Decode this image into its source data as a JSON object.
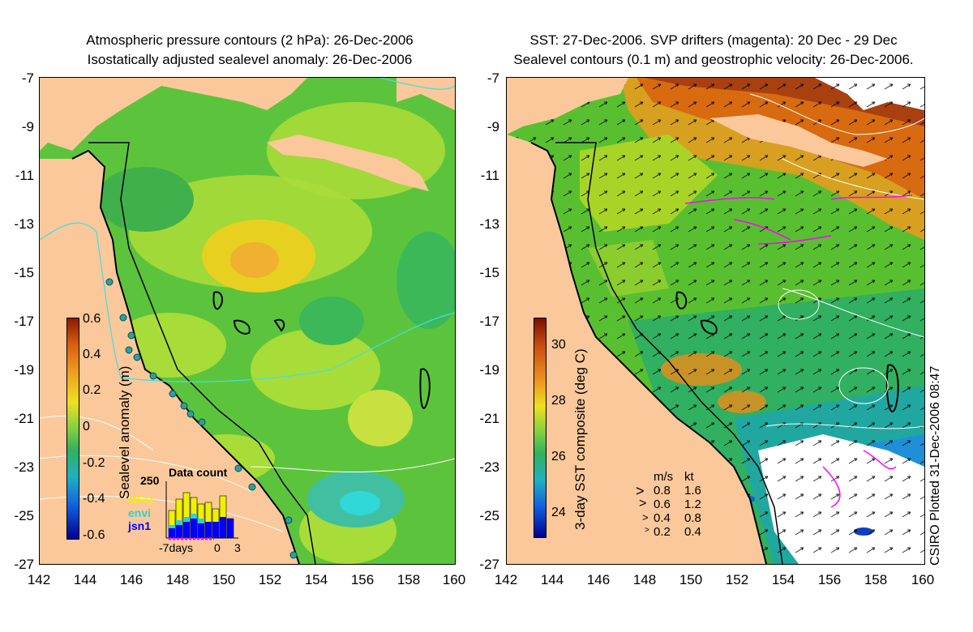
{
  "left_panel": {
    "title_line1": "Atmospheric pressure contours (2 hPa): 26-Dec-2006",
    "title_line2": "Isostatically adjusted sealevel anomaly: 26-Dec-2006",
    "colorbar_label": "Sealevel anomaly (m)",
    "colorbar_ticks": [
      "0.6",
      "0.4",
      "0.2",
      "0",
      "-0.2",
      "-0.4",
      "-0.6"
    ],
    "inset": {
      "title": "Data count",
      "y_tick": "250",
      "sources": [
        {
          "name": "GFO",
          "color": "#f0f000"
        },
        {
          "name": "envi",
          "color": "#30d0d0"
        },
        {
          "name": "jsn1",
          "color": "#0000ff"
        }
      ],
      "x_left": "-7days",
      "x_mid": "0",
      "x_right": "3"
    }
  },
  "right_panel": {
    "title_line1": "SST: 27-Dec-2006. SVP drifters (magenta): 20 Dec - 29 Dec",
    "title_line2": "Sealevel contours (0.1 m) and geostrophic velocity: 26-Dec-2006.",
    "colorbar_label": "3-day SST composite (deg C)",
    "colorbar_ticks": [
      "30",
      "28",
      "26",
      "24"
    ],
    "velocity_legend": {
      "header_ms": "m/s",
      "header_kt": "kt",
      "rows": [
        {
          "ms": "0.8",
          "kt": "1.6"
        },
        {
          "ms": "0.6",
          "kt": "1.2"
        },
        {
          "ms": "0.4",
          "kt": "0.8"
        },
        {
          "ms": "0.2",
          "kt": "0.4"
        }
      ]
    },
    "credit": "CSIRO Plotted 31-Dec-2006 08:47"
  },
  "axes": {
    "lat_ticks": [
      "-7",
      "-9",
      "-11",
      "-13",
      "-15",
      "-17",
      "-19",
      "-21",
      "-23",
      "-25",
      "-27"
    ],
    "lon_ticks": [
      "142",
      "144",
      "146",
      "148",
      "150",
      "152",
      "154",
      "156",
      "158",
      "160"
    ]
  },
  "colors": {
    "land": "#fac89a",
    "sla_base": "#5cc43c",
    "sst_warm": "#d86a10",
    "sst_mid": "#58c030",
    "sst_cool": "#20a0d8",
    "drifter": "#ff00ff"
  }
}
